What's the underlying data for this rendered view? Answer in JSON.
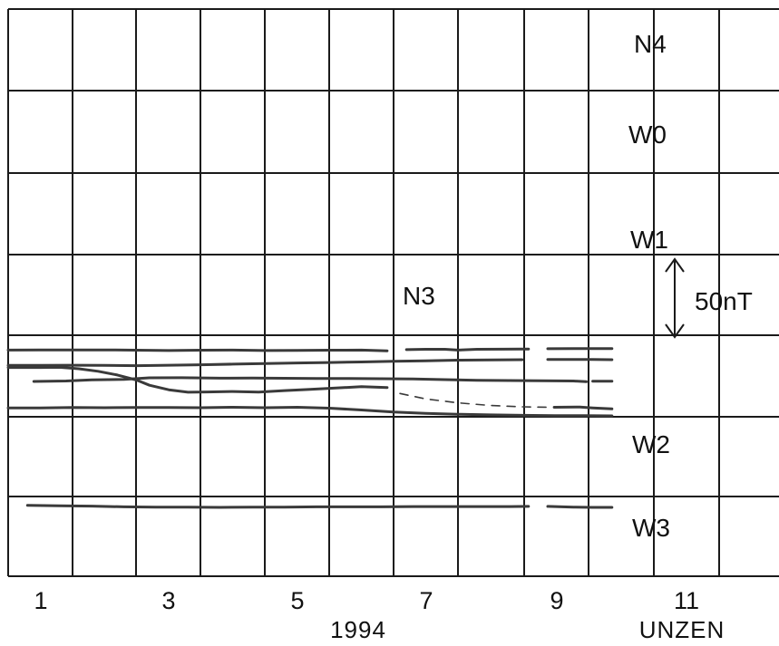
{
  "chart_data": {
    "type": "line",
    "x_ticks": [
      "1",
      "3",
      "5",
      "7",
      "9",
      "11"
    ],
    "xlabel": "1994",
    "station": "UNZEN",
    "xlim": [
      0.5,
      12.5
    ],
    "scale_bar": {
      "label": "50nT",
      "value": 50
    },
    "colors": {
      "trace": "#3a3a3a",
      "grid": "#1a1a1a"
    },
    "series": [
      {
        "name": "N4",
        "style": "solid",
        "points": [
          [
            0.5,
            44.9
          ],
          [
            1.0,
            45.0
          ],
          [
            1.5,
            45.0
          ],
          [
            2.0,
            45.0
          ],
          [
            2.5,
            44.8
          ],
          [
            3.0,
            44.6
          ],
          [
            3.5,
            44.8
          ],
          [
            4.0,
            44.9
          ],
          [
            4.5,
            44.6
          ],
          [
            5.0,
            44.7
          ],
          [
            5.5,
            44.8
          ],
          [
            6.0,
            44.9
          ],
          [
            6.4,
            44.4
          ],
          null,
          [
            6.7,
            45.2
          ],
          [
            7.0,
            45.4
          ],
          [
            7.3,
            45.4
          ],
          [
            7.5,
            44.9
          ],
          [
            7.8,
            45.4
          ],
          [
            8.2,
            45.5
          ],
          [
            8.5,
            45.6
          ],
          [
            8.6,
            45.6
          ],
          null,
          [
            8.9,
            45.8
          ],
          [
            9.3,
            45.9
          ],
          [
            9.6,
            45.9
          ],
          [
            9.9,
            45.9
          ]
        ]
      },
      {
        "name": "W0",
        "style": "solid",
        "points": [
          [
            0.5,
            34.6
          ],
          [
            1.0,
            34.6
          ],
          [
            1.5,
            34.7
          ],
          [
            2.0,
            34.6
          ],
          [
            2.5,
            34.4
          ],
          [
            3.0,
            34.7
          ],
          [
            3.5,
            35.0
          ],
          [
            4.0,
            35.4
          ],
          [
            4.5,
            35.8
          ],
          [
            5.0,
            36.2
          ],
          [
            5.5,
            36.5
          ],
          [
            6.0,
            36.9
          ],
          [
            6.5,
            37.3
          ],
          [
            7.0,
            37.7
          ],
          [
            7.5,
            38.1
          ],
          [
            8.0,
            38.3
          ],
          [
            8.5,
            38.4
          ],
          null,
          [
            8.9,
            38.6
          ],
          [
            9.3,
            38.6
          ],
          [
            9.6,
            38.6
          ],
          [
            9.9,
            38.4
          ]
        ]
      },
      {
        "name": "W1",
        "style": "solid",
        "points": [
          [
            0.9,
            23.8
          ],
          [
            1.4,
            24.1
          ],
          [
            1.8,
            24.9
          ],
          [
            2.3,
            25.1
          ],
          [
            2.7,
            26.2
          ],
          [
            3.2,
            26.3
          ],
          [
            3.8,
            26.0
          ],
          [
            4.3,
            26.1
          ],
          [
            4.8,
            25.9
          ],
          [
            5.3,
            25.8
          ],
          [
            5.8,
            25.8
          ],
          [
            6.3,
            25.6
          ],
          [
            6.8,
            25.4
          ],
          [
            7.3,
            25.0
          ],
          [
            7.8,
            24.6
          ],
          [
            8.3,
            24.4
          ],
          [
            8.8,
            24.2
          ],
          [
            9.3,
            24.1
          ],
          [
            9.5,
            23.6
          ],
          null,
          [
            9.6,
            23.9
          ],
          [
            9.9,
            23.9
          ]
        ]
      },
      {
        "name": "N3",
        "style": "solid",
        "points": [
          [
            0.5,
            33.2
          ],
          [
            1.0,
            33.2
          ],
          [
            1.3,
            33.3
          ],
          [
            1.6,
            32.3
          ],
          [
            1.9,
            30.6
          ],
          [
            2.2,
            28.1
          ],
          [
            2.5,
            24.7
          ],
          [
            2.7,
            21.2
          ],
          [
            3.0,
            18.2
          ],
          [
            3.3,
            16.5
          ],
          [
            3.6,
            16.7
          ],
          [
            4.0,
            17.0
          ],
          [
            4.4,
            16.6
          ],
          [
            4.8,
            17.6
          ],
          [
            5.2,
            18.5
          ],
          [
            5.6,
            19.3
          ],
          [
            6.0,
            20.3
          ],
          [
            6.4,
            19.7
          ]
        ]
      },
      {
        "name": "N3",
        "style": "dashed",
        "points": [
          [
            6.6,
            15.7
          ],
          [
            7.0,
            12.0
          ],
          [
            7.5,
            9.4
          ],
          [
            8.0,
            7.6
          ],
          [
            8.5,
            6.7
          ],
          [
            8.9,
            6.4
          ]
        ]
      },
      {
        "name": "N3",
        "style": "solid",
        "points": [
          [
            9.0,
            6.4
          ],
          [
            9.4,
            6.6
          ],
          [
            9.6,
            6.0
          ],
          [
            9.9,
            5.3
          ]
        ]
      },
      {
        "name": "W2",
        "style": "solid",
        "points": [
          [
            0.5,
            6.0
          ],
          [
            1.0,
            6.0
          ],
          [
            1.5,
            6.3
          ],
          [
            2.0,
            6.1
          ],
          [
            2.5,
            6.2
          ],
          [
            3.0,
            6.3
          ],
          [
            3.5,
            6.1
          ],
          [
            4.0,
            6.4
          ],
          [
            4.5,
            6.1
          ],
          [
            5.0,
            6.4
          ],
          [
            5.5,
            5.8
          ],
          [
            6.0,
            4.6
          ],
          [
            6.5,
            3.2
          ],
          [
            7.0,
            2.3
          ],
          [
            7.5,
            1.7
          ],
          [
            8.0,
            1.3
          ],
          [
            8.5,
            1.0
          ],
          [
            9.0,
            0.8
          ],
          [
            9.5,
            0.8
          ],
          [
            9.9,
            0.6
          ]
        ]
      },
      {
        "name": "W3",
        "style": "solid",
        "points": [
          [
            0.8,
            -59.6
          ],
          [
            1.3,
            -59.9
          ],
          [
            1.8,
            -60.1
          ],
          [
            2.3,
            -60.6
          ],
          [
            2.8,
            -60.8
          ],
          [
            3.3,
            -60.8
          ],
          [
            3.8,
            -61.0
          ],
          [
            4.3,
            -60.8
          ],
          [
            4.8,
            -60.8
          ],
          [
            5.3,
            -60.6
          ],
          [
            5.8,
            -60.6
          ],
          [
            6.3,
            -60.6
          ],
          [
            6.8,
            -60.4
          ],
          [
            7.3,
            -60.4
          ],
          [
            7.8,
            -60.4
          ],
          [
            8.3,
            -60.4
          ],
          [
            8.6,
            -60.3
          ],
          null,
          [
            8.9,
            -60.3
          ],
          [
            9.3,
            -60.8
          ],
          [
            9.6,
            -61.0
          ],
          [
            9.9,
            -61.0
          ]
        ]
      }
    ]
  }
}
